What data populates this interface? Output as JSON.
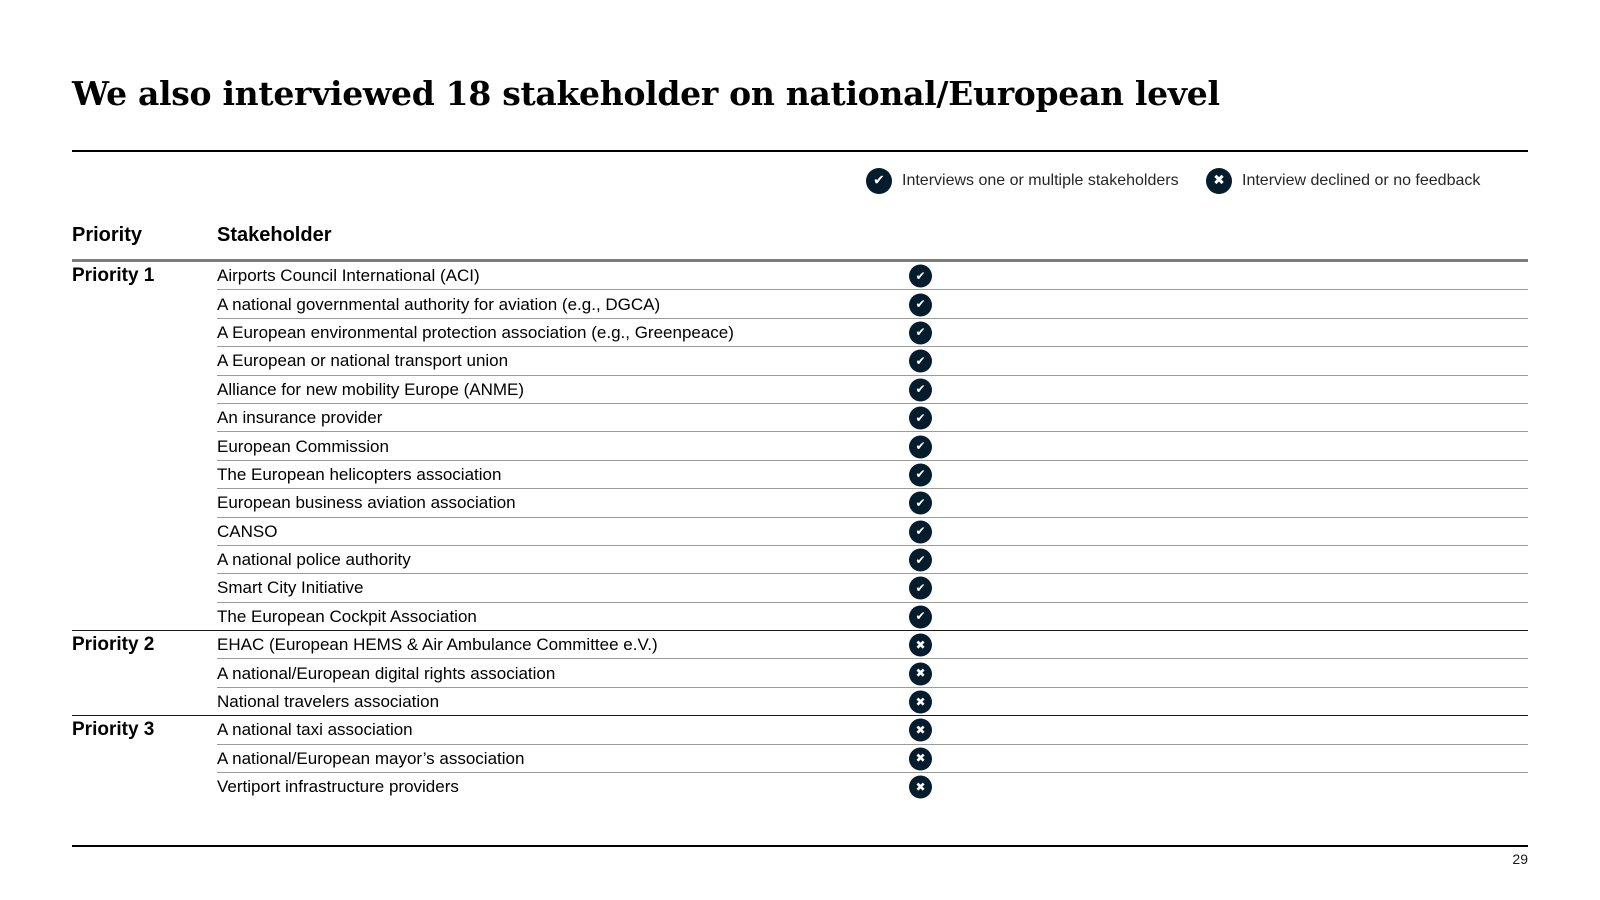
{
  "page": {
    "title": "We also interviewed 18 stakeholder on national/European level",
    "page_number": "29"
  },
  "legend": {
    "items": [
      {
        "icon": "check-icon",
        "glyph": "✔",
        "label": "Interviews one or multiple stakeholders"
      },
      {
        "icon": "cross-icon",
        "glyph": "✖",
        "label": "Interview declined or no feedback"
      }
    ]
  },
  "icons": {
    "check": "✔",
    "cross": "✖"
  },
  "colors": {
    "icon_bg": "#051c2c",
    "icon_fg": "#ffffff",
    "rule_dark": "#000000",
    "header_rule": "#7d7d7d",
    "row_sep": "#9b9b9b",
    "group_sep": "#1a1a1a"
  },
  "table": {
    "columns": [
      "Priority",
      "Stakeholder"
    ],
    "groups": [
      {
        "priority": "Priority 1",
        "rows": [
          {
            "stakeholder": "Airports Council International (ACI)",
            "status": "check"
          },
          {
            "stakeholder": "A national governmental authority for aviation (e.g., DGCA)",
            "status": "check"
          },
          {
            "stakeholder": "A European environmental protection association (e.g., Greenpeace)",
            "status": "check"
          },
          {
            "stakeholder": "A European or national transport union",
            "status": "check"
          },
          {
            "stakeholder": "Alliance for new mobility Europe (ANME)",
            "status": "check"
          },
          {
            "stakeholder": "An insurance provider",
            "status": "check"
          },
          {
            "stakeholder": "European Commission",
            "status": "check"
          },
          {
            "stakeholder": "The European helicopters association",
            "status": "check"
          },
          {
            "stakeholder": "European business aviation association",
            "status": "check"
          },
          {
            "stakeholder": "CANSO",
            "status": "check"
          },
          {
            "stakeholder": "A national police authority",
            "status": "check"
          },
          {
            "stakeholder": "Smart City Initiative",
            "status": "check"
          },
          {
            "stakeholder": "The European Cockpit Association",
            "status": "check"
          }
        ]
      },
      {
        "priority": "Priority 2",
        "rows": [
          {
            "stakeholder": "EHAC (European HEMS & Air Ambulance Committee e.V.)",
            "status": "cross"
          },
          {
            "stakeholder": "A national/European digital rights association",
            "status": "cross"
          },
          {
            "stakeholder": "National travelers association",
            "status": "cross"
          }
        ]
      },
      {
        "priority": "Priority 3",
        "rows": [
          {
            "stakeholder": "A national taxi association",
            "status": "cross"
          },
          {
            "stakeholder": "A national/European mayor’s association",
            "status": "cross"
          },
          {
            "stakeholder": "Vertiport infrastructure providers",
            "status": "cross"
          }
        ]
      }
    ]
  }
}
